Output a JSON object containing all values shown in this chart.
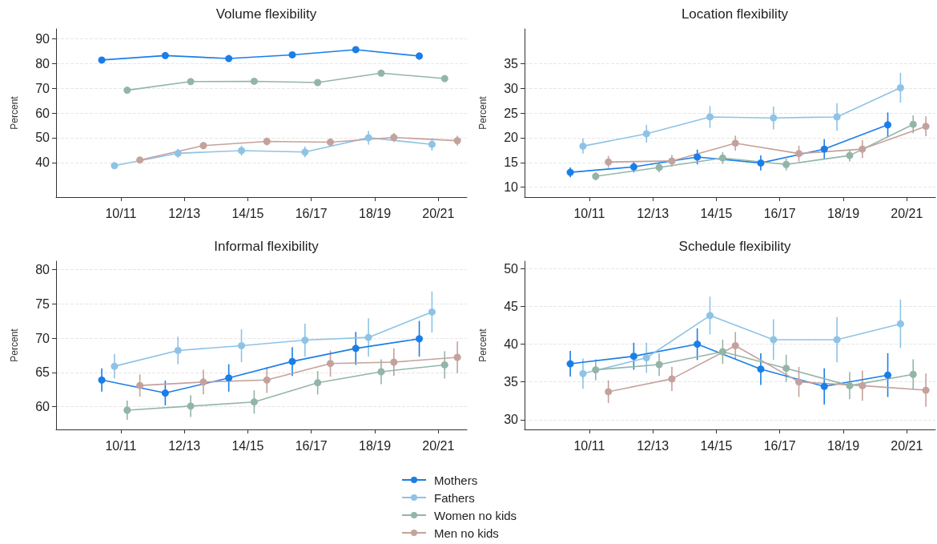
{
  "chart_data": [
    {
      "type": "line",
      "title": "Volume flexibility",
      "ylabel": "Percent",
      "categories": [
        "10/11",
        "12/13",
        "14/15",
        "16/17",
        "18/19",
        "20/21"
      ],
      "ylim": [
        26,
        94
      ],
      "yticks": [
        40,
        50,
        60,
        70,
        80,
        90
      ],
      "grid": "y",
      "marker": "circle",
      "line_style": "solid",
      "legend": "bottom",
      "series": [
        {
          "name": "Mothers",
          "color": "#1a7ee8",
          "values": [
            81.4,
            83.2,
            82.0,
            83.5,
            85.6,
            83.0
          ],
          "errors": [
            0.8,
            0.8,
            0.9,
            1,
            1,
            1.5
          ]
        },
        {
          "name": "Fathers",
          "color": "#8ec3e6",
          "values": [
            38.7,
            43.7,
            44.8,
            44.2,
            50.0,
            47.3
          ],
          "errors": [
            1.3,
            1.8,
            2,
            2.2,
            2.8,
            2.5
          ]
        },
        {
          "name": "Women no kids",
          "color": "#93b5a8",
          "values": [
            69.2,
            72.7,
            72.8,
            72.3,
            76.1,
            73.9
          ],
          "errors": [
            0.8,
            0.8,
            0.8,
            0.9,
            0.9,
            1
          ]
        },
        {
          "name": "Men no kids",
          "color": "#c4a29c",
          "values": [
            41.0,
            46.8,
            48.5,
            48.2,
            50.1,
            48.8
          ],
          "errors": [
            1.2,
            1.4,
            1.6,
            1.6,
            1.8,
            2
          ]
        }
      ]
    },
    {
      "type": "line",
      "title": "Location flexibility",
      "ylabel": "Percent",
      "categories": [
        "10/11",
        "12/13",
        "14/15",
        "16/17",
        "18/19",
        "20/21"
      ],
      "ylim": [
        8,
        42
      ],
      "yticks": [
        10,
        15,
        20,
        25,
        30,
        35
      ],
      "grid": "y",
      "marker": "circle",
      "line_style": "solid",
      "series": [
        {
          "name": "Mothers",
          "color": "#1a7ee8",
          "values": [
            13.0,
            14.1,
            16.1,
            14.9,
            17.7,
            22.6
          ],
          "errors": [
            1,
            1.1,
            1.5,
            1.5,
            2,
            2.5
          ]
        },
        {
          "name": "Fathers",
          "color": "#8ec3e6",
          "values": [
            18.3,
            20.8,
            24.2,
            24.0,
            24.2,
            30.1
          ],
          "errors": [
            1.5,
            1.8,
            2.2,
            2.3,
            2.8,
            3
          ]
        },
        {
          "name": "Women no kids",
          "color": "#93b5a8",
          "values": [
            12.2,
            14.0,
            15.9,
            14.6,
            16.4,
            22.7
          ],
          "errors": [
            0.8,
            1,
            1.2,
            1.2,
            1.2,
            1.8
          ]
        },
        {
          "name": "Men no kids",
          "color": "#c4a29c",
          "values": [
            15.1,
            15.3,
            18.9,
            16.8,
            17.7,
            22.3
          ],
          "errors": [
            1.2,
            1.2,
            1.5,
            1.6,
            1.8,
            2
          ]
        }
      ]
    },
    {
      "type": "line",
      "title": "Informal flexibility",
      "ylabel": "Percent",
      "categories": [
        "10/11",
        "12/13",
        "14/15",
        "16/17",
        "18/19",
        "20/21"
      ],
      "ylim": [
        56.7,
        81.2
      ],
      "yticks": [
        60,
        65,
        70,
        75,
        80
      ],
      "grid": "y",
      "marker": "circle",
      "line_style": "solid",
      "series": [
        {
          "name": "Mothers",
          "color": "#1a7ee8",
          "values": [
            63.9,
            62.0,
            64.2,
            66.6,
            68.5,
            69.9
          ],
          "errors": [
            1.7,
            1.8,
            2,
            2.1,
            2.4,
            2.6
          ]
        },
        {
          "name": "Fathers",
          "color": "#8ec3e6",
          "values": [
            65.9,
            68.2,
            68.9,
            69.7,
            70.1,
            73.8
          ],
          "errors": [
            1.8,
            2,
            2.4,
            2.4,
            2.8,
            3
          ]
        },
        {
          "name": "Women no kids",
          "color": "#93b5a8",
          "values": [
            59.5,
            60.1,
            60.7,
            63.5,
            65.1,
            66.1
          ],
          "errors": [
            1.4,
            1.6,
            1.7,
            1.7,
            1.8,
            2
          ]
        },
        {
          "name": "Men no kids",
          "color": "#c4a29c",
          "values": [
            63.1,
            63.6,
            63.9,
            66.3,
            66.5,
            67.2
          ],
          "errors": [
            1.6,
            1.8,
            1.9,
            1.9,
            2,
            2.3
          ]
        }
      ]
    },
    {
      "type": "line",
      "title": "Schedule flexibility",
      "ylabel": "Percent",
      "categories": [
        "10/11",
        "12/13",
        "14/15",
        "16/17",
        "18/19",
        "20/21"
      ],
      "ylim": [
        28.7,
        51
      ],
      "yticks": [
        30,
        35,
        40,
        45,
        50
      ],
      "grid": "y",
      "marker": "circle",
      "line_style": "solid",
      "series": [
        {
          "name": "Mothers",
          "color": "#1a7ee8",
          "values": [
            37.4,
            38.4,
            40.0,
            36.7,
            34.4,
            35.9
          ],
          "errors": [
            1.7,
            1.8,
            2.1,
            2.1,
            2.4,
            2.9
          ]
        },
        {
          "name": "Fathers",
          "color": "#8ec3e6",
          "values": [
            36.1,
            38.2,
            43.8,
            40.6,
            40.6,
            42.7
          ],
          "errors": [
            2,
            2,
            2.5,
            2.7,
            3,
            3.2
          ]
        },
        {
          "name": "Women no kids",
          "color": "#93b5a8",
          "values": [
            36.6,
            37.3,
            39.0,
            36.8,
            34.5,
            36.0
          ],
          "errors": [
            1.4,
            1.5,
            1.6,
            1.8,
            1.8,
            2
          ]
        },
        {
          "name": "Men no kids",
          "color": "#c4a29c",
          "values": [
            33.7,
            35.4,
            39.8,
            35.0,
            34.5,
            33.9
          ],
          "errors": [
            1.5,
            1.6,
            1.8,
            2,
            2,
            2.2
          ]
        }
      ]
    }
  ]
}
